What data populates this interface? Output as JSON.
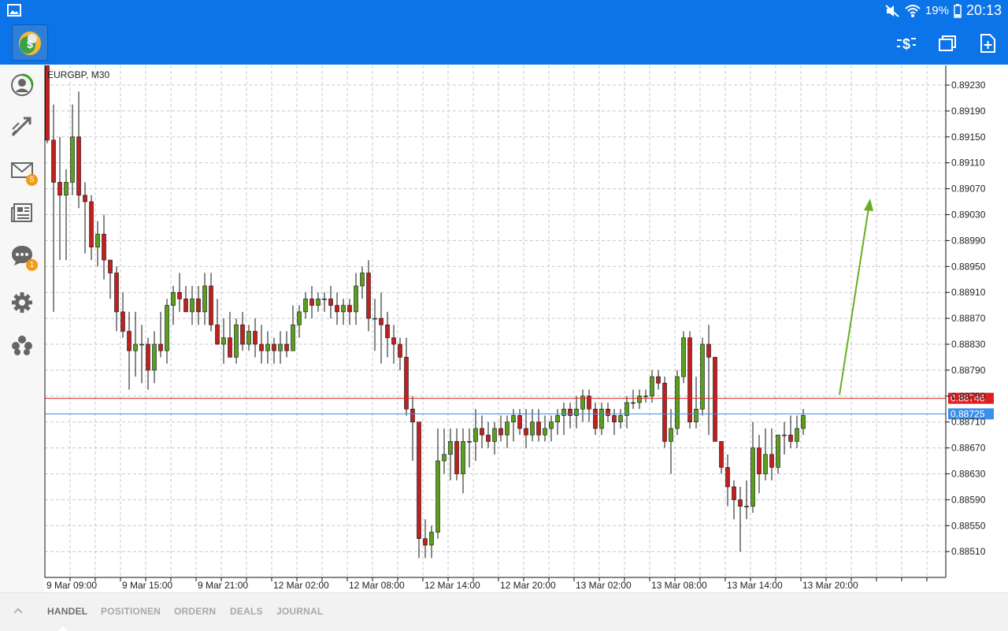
{
  "status_bar": {
    "battery": "19%",
    "time": "20:13"
  },
  "toolbar": {
    "logo_icon": "metatrader-logo-icon",
    "actions": [
      "quick-trade-icon",
      "windows-icon",
      "new-order-icon"
    ]
  },
  "sidebar": {
    "items": [
      {
        "name": "account-icon"
      },
      {
        "name": "trade-icon"
      },
      {
        "name": "mail-icon",
        "badge": "5"
      },
      {
        "name": "news-icon"
      },
      {
        "name": "chat-icon",
        "badge": "1"
      },
      {
        "name": "settings-icon"
      },
      {
        "name": "community-icon"
      }
    ]
  },
  "bottom_tabs": [
    "HANDEL",
    "POSITIONEN",
    "ORDERN",
    "DEALS",
    "JOURNAL"
  ],
  "chart_data": {
    "type": "candlestick",
    "title": "EURGBP, M30",
    "ylim": [
      0.8848,
      0.8926
    ],
    "y_ticks": [
      "0.89230",
      "0.89190",
      "0.89150",
      "0.89110",
      "0.89070",
      "0.89030",
      "0.88990",
      "0.88950",
      "0.88910",
      "0.88870",
      "0.88830",
      "0.88790",
      "0.88750",
      "0.88710",
      "0.88670",
      "0.88630",
      "0.88590",
      "0.88550",
      "0.88510"
    ],
    "x_ticks": [
      "9 Mar 09:00",
      "9 Mar 15:00",
      "9 Mar 21:00",
      "12 Mar 02:00",
      "12 Mar 08:00",
      "12 Mar 14:00",
      "12 Mar 20:00",
      "13 Mar 02:00",
      "13 Mar 08:00",
      "13 Mar 14:00",
      "13 Mar 20:00"
    ],
    "ask_price": "0.88746",
    "bid_price": "0.88725",
    "ask_color": "#e02020",
    "bid_color": "#3c8ee8",
    "bull_color": "#5a9e1f",
    "bear_color": "#c0201f",
    "annotation": "upward green arrow",
    "candles": [
      [
        0.8926,
        0.8926,
        0.8914,
        0.89145
      ],
      [
        0.89145,
        0.892,
        0.8888,
        0.8908
      ],
      [
        0.8908,
        0.8915,
        0.8896,
        0.8906
      ],
      [
        0.8906,
        0.891,
        0.8896,
        0.8908
      ],
      [
        0.8908,
        0.892,
        0.8906,
        0.8915
      ],
      [
        0.8915,
        0.8922,
        0.8904,
        0.8906
      ],
      [
        0.8906,
        0.8908,
        0.8897,
        0.8905
      ],
      [
        0.8905,
        0.8906,
        0.8896,
        0.8898
      ],
      [
        0.8898,
        0.8902,
        0.8895,
        0.89
      ],
      [
        0.89,
        0.8903,
        0.8893,
        0.8896
      ],
      [
        0.8896,
        0.8896,
        0.889,
        0.8894
      ],
      [
        0.8894,
        0.8895,
        0.8885,
        0.8888
      ],
      [
        0.8888,
        0.8891,
        0.8884,
        0.8885
      ],
      [
        0.8885,
        0.8888,
        0.8876,
        0.8882
      ],
      [
        0.8882,
        0.8888,
        0.8878,
        0.8883
      ],
      [
        0.8883,
        0.8886,
        0.8877,
        0.8883
      ],
      [
        0.8883,
        0.8884,
        0.8876,
        0.8879
      ],
      [
        0.8879,
        0.8885,
        0.8877,
        0.8883
      ],
      [
        0.8883,
        0.8888,
        0.8881,
        0.8882
      ],
      [
        0.8882,
        0.889,
        0.888,
        0.8889
      ],
      [
        0.8889,
        0.8892,
        0.8886,
        0.8891
      ],
      [
        0.8891,
        0.8894,
        0.8888,
        0.889
      ],
      [
        0.889,
        0.8892,
        0.8888,
        0.8888
      ],
      [
        0.8888,
        0.8892,
        0.8886,
        0.889
      ],
      [
        0.889,
        0.8892,
        0.8886,
        0.8888
      ],
      [
        0.8888,
        0.8894,
        0.8886,
        0.8892
      ],
      [
        0.8892,
        0.8894,
        0.8885,
        0.8886
      ],
      [
        0.8886,
        0.889,
        0.8883,
        0.8883
      ],
      [
        0.8883,
        0.8887,
        0.888,
        0.8884
      ],
      [
        0.8884,
        0.8888,
        0.8881,
        0.8881
      ],
      [
        0.8881,
        0.8887,
        0.888,
        0.8886
      ],
      [
        0.8886,
        0.8888,
        0.8882,
        0.8883
      ],
      [
        0.8883,
        0.8886,
        0.8882,
        0.8885
      ],
      [
        0.8885,
        0.8887,
        0.8881,
        0.8883
      ],
      [
        0.8883,
        0.8886,
        0.888,
        0.8882
      ],
      [
        0.8882,
        0.8885,
        0.888,
        0.8883
      ],
      [
        0.8883,
        0.8884,
        0.888,
        0.8882
      ],
      [
        0.8882,
        0.8885,
        0.888,
        0.8883
      ],
      [
        0.8883,
        0.8885,
        0.8881,
        0.8882
      ],
      [
        0.8882,
        0.8889,
        0.8882,
        0.8886
      ],
      [
        0.8886,
        0.8889,
        0.8884,
        0.8888
      ],
      [
        0.8888,
        0.8891,
        0.8887,
        0.889
      ],
      [
        0.889,
        0.8892,
        0.8887,
        0.8889
      ],
      [
        0.8889,
        0.8891,
        0.8888,
        0.889
      ],
      [
        0.889,
        0.8891,
        0.8888,
        0.889
      ],
      [
        0.889,
        0.8892,
        0.8887,
        0.8889
      ],
      [
        0.8889,
        0.8891,
        0.8886,
        0.8888
      ],
      [
        0.8888,
        0.889,
        0.8886,
        0.8889
      ],
      [
        0.8889,
        0.889,
        0.8886,
        0.8888
      ],
      [
        0.8888,
        0.8894,
        0.8886,
        0.8892
      ],
      [
        0.8892,
        0.8895,
        0.889,
        0.8894
      ],
      [
        0.8894,
        0.8896,
        0.8885,
        0.8887
      ],
      [
        0.8887,
        0.889,
        0.8882,
        0.8887
      ],
      [
        0.8887,
        0.8891,
        0.888,
        0.8886
      ],
      [
        0.8886,
        0.8888,
        0.8881,
        0.8884
      ],
      [
        0.8884,
        0.8886,
        0.888,
        0.8883
      ],
      [
        0.8883,
        0.8884,
        0.8879,
        0.8881
      ],
      [
        0.8881,
        0.8884,
        0.8872,
        0.8873
      ],
      [
        0.8873,
        0.8875,
        0.8865,
        0.8871
      ],
      [
        0.8871,
        0.8871,
        0.885,
        0.8853
      ],
      [
        0.8853,
        0.8856,
        0.885,
        0.8852
      ],
      [
        0.8852,
        0.8855,
        0.885,
        0.8854
      ],
      [
        0.8854,
        0.887,
        0.8853,
        0.8865
      ],
      [
        0.8865,
        0.887,
        0.8863,
        0.8866
      ],
      [
        0.8866,
        0.887,
        0.8862,
        0.8868
      ],
      [
        0.8868,
        0.887,
        0.8862,
        0.8863
      ],
      [
        0.8863,
        0.887,
        0.886,
        0.8868
      ],
      [
        0.8868,
        0.887,
        0.8864,
        0.8868
      ],
      [
        0.8868,
        0.8873,
        0.8865,
        0.887
      ],
      [
        0.887,
        0.8872,
        0.8867,
        0.8869
      ],
      [
        0.8869,
        0.8871,
        0.8867,
        0.8868
      ],
      [
        0.8868,
        0.8871,
        0.8866,
        0.887
      ],
      [
        0.887,
        0.8872,
        0.8868,
        0.8869
      ],
      [
        0.8869,
        0.8872,
        0.8867,
        0.8871
      ],
      [
        0.8871,
        0.8873,
        0.8868,
        0.8872
      ],
      [
        0.8872,
        0.8873,
        0.8869,
        0.887
      ],
      [
        0.887,
        0.8873,
        0.8867,
        0.8869
      ],
      [
        0.8869,
        0.8873,
        0.8868,
        0.8871
      ],
      [
        0.8871,
        0.8873,
        0.8868,
        0.8869
      ],
      [
        0.8869,
        0.8872,
        0.8868,
        0.887
      ],
      [
        0.887,
        0.8872,
        0.8868,
        0.8871
      ],
      [
        0.8871,
        0.8873,
        0.8869,
        0.8872
      ],
      [
        0.8872,
        0.8874,
        0.8869,
        0.8873
      ],
      [
        0.8873,
        0.8874,
        0.887,
        0.8872
      ],
      [
        0.8872,
        0.8875,
        0.887,
        0.8873
      ],
      [
        0.8873,
        0.8876,
        0.8871,
        0.8875
      ],
      [
        0.8875,
        0.8876,
        0.8871,
        0.8873
      ],
      [
        0.8873,
        0.8874,
        0.8869,
        0.887
      ],
      [
        0.887,
        0.8874,
        0.8869,
        0.8873
      ],
      [
        0.8873,
        0.8874,
        0.8871,
        0.8872
      ],
      [
        0.8872,
        0.8873,
        0.8869,
        0.8871
      ],
      [
        0.8871,
        0.8873,
        0.887,
        0.8872
      ],
      [
        0.8872,
        0.8875,
        0.887,
        0.8874
      ],
      [
        0.8874,
        0.8876,
        0.8873,
        0.8874
      ],
      [
        0.8874,
        0.8876,
        0.8873,
        0.8875
      ],
      [
        0.8875,
        0.8876,
        0.8874,
        0.8875
      ],
      [
        0.8875,
        0.8879,
        0.8874,
        0.8878
      ],
      [
        0.8878,
        0.8879,
        0.8876,
        0.8877
      ],
      [
        0.8877,
        0.8878,
        0.8867,
        0.8868
      ],
      [
        0.8868,
        0.8873,
        0.8863,
        0.887
      ],
      [
        0.887,
        0.8879,
        0.8869,
        0.8878
      ],
      [
        0.8878,
        0.8885,
        0.8877,
        0.8884
      ],
      [
        0.8884,
        0.8885,
        0.887,
        0.8871
      ],
      [
        0.8871,
        0.8878,
        0.887,
        0.8873
      ],
      [
        0.8873,
        0.8884,
        0.8872,
        0.8883
      ],
      [
        0.8883,
        0.8886,
        0.8869,
        0.8881
      ],
      [
        0.8881,
        0.8881,
        0.8868,
        0.8868
      ],
      [
        0.8868,
        0.8868,
        0.8863,
        0.8864
      ],
      [
        0.8864,
        0.8866,
        0.8858,
        0.8861
      ],
      [
        0.8861,
        0.8862,
        0.8856,
        0.8859
      ],
      [
        0.8859,
        0.8861,
        0.8851,
        0.8858
      ],
      [
        0.8858,
        0.8862,
        0.8856,
        0.8858
      ],
      [
        0.8858,
        0.8871,
        0.8857,
        0.8867
      ],
      [
        0.8867,
        0.8869,
        0.886,
        0.8863
      ],
      [
        0.8863,
        0.887,
        0.8862,
        0.8866
      ],
      [
        0.8866,
        0.887,
        0.8862,
        0.8864
      ],
      [
        0.8864,
        0.8869,
        0.8863,
        0.8869
      ],
      [
        0.8869,
        0.8871,
        0.8866,
        0.8869
      ],
      [
        0.8869,
        0.8872,
        0.8867,
        0.8868
      ],
      [
        0.8868,
        0.8872,
        0.8867,
        0.887
      ],
      [
        0.887,
        0.8873,
        0.8869,
        0.8872
      ]
    ]
  }
}
